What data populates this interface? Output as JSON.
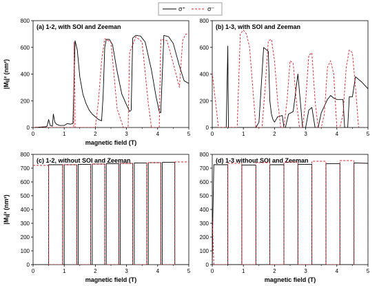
{
  "legend": {
    "entries": [
      {
        "label": "σ⁺",
        "color": "#000000",
        "dash": "solid"
      },
      {
        "label": "σ⁻",
        "color": "#d0202a",
        "dash": "dashed"
      }
    ],
    "placement": "top-center"
  },
  "chart_data": [
    {
      "type": "line",
      "title": "(a) 1-2, with SOI and Zeeman",
      "xlabel": "magnetic field (T)",
      "ylabel": "|Mᵢⱼ|² (nm²)",
      "xlim": [
        0,
        5
      ],
      "ylim": [
        0,
        800
      ],
      "xticks": [
        "0",
        "1",
        "2",
        "3",
        "4",
        "5"
      ],
      "yticks": [
        "0",
        "200",
        "400",
        "600",
        "800"
      ],
      "series": [
        {
          "name": "σ⁺",
          "x": [
            0,
            0.4,
            0.45,
            0.5,
            0.55,
            0.62,
            0.65,
            0.7,
            0.75,
            0.85,
            1.0,
            1.1,
            1.2,
            1.28,
            1.3,
            1.35,
            1.42,
            1.5,
            1.6,
            1.7,
            1.8,
            1.9,
            2.0,
            2.1,
            2.2,
            2.25,
            2.3,
            2.35,
            2.45,
            2.55,
            2.7,
            2.85,
            3.0,
            3.1,
            3.15,
            3.2,
            3.3,
            3.45,
            3.6,
            3.8,
            3.95,
            4.05,
            4.1,
            4.2,
            4.35,
            4.5,
            4.7,
            4.85,
            5.0
          ],
          "y": [
            0,
            5,
            10,
            60,
            15,
            10,
            100,
            40,
            25,
            15,
            15,
            30,
            25,
            30,
            220,
            650,
            580,
            380,
            250,
            180,
            130,
            100,
            80,
            60,
            50,
            240,
            600,
            660,
            660,
            620,
            420,
            250,
            170,
            120,
            130,
            670,
            690,
            685,
            640,
            430,
            230,
            120,
            110,
            690,
            680,
            630,
            460,
            350,
            330
          ]
        },
        {
          "name": "σ⁻",
          "x": [
            0,
            1.3,
            1.32,
            1.35,
            1.8,
            2.0,
            2.1,
            2.2,
            2.3,
            2.5,
            2.7,
            2.9,
            3.0,
            3.05,
            3.1,
            3.3,
            3.5,
            3.7,
            3.8,
            3.9,
            4.0,
            4.05,
            4.1,
            4.3,
            4.5,
            4.7,
            4.8,
            4.9,
            5.0
          ],
          "y": [
            0,
            0,
            640,
            0,
            0,
            0,
            200,
            500,
            665,
            640,
            140,
            0,
            0,
            0,
            560,
            680,
            640,
            180,
            0,
            0,
            0,
            0,
            660,
            650,
            480,
            300,
            650,
            700,
            700
          ]
        }
      ]
    },
    {
      "type": "line",
      "title": "(b) 1-3, with SOI and Zeeman",
      "xlabel": "",
      "ylabel": "",
      "xlim": [
        0,
        5
      ],
      "ylim": [
        0,
        800
      ],
      "xticks": [
        "0",
        "1",
        "2",
        "3",
        "4",
        "5"
      ],
      "yticks": [
        "0",
        "200",
        "400",
        "600",
        "800"
      ],
      "series": [
        {
          "name": "σ⁺",
          "x": [
            0,
            0.35,
            0.45,
            0.5,
            0.52,
            0.6,
            1.4,
            1.5,
            1.65,
            1.8,
            1.85,
            1.9,
            1.95,
            2.0,
            2.1,
            2.25,
            2.3,
            2.35,
            2.45,
            2.6,
            2.75,
            2.85,
            2.9,
            3.0,
            3.1,
            3.2,
            3.3,
            3.4,
            3.5,
            3.7,
            3.8,
            3.9,
            4.0,
            4.2,
            4.25,
            4.3,
            4.35,
            4.4,
            4.5,
            4.6,
            4.8,
            5.0
          ],
          "y": [
            0,
            0,
            0,
            610,
            0,
            0,
            0,
            40,
            600,
            570,
            200,
            100,
            60,
            40,
            80,
            90,
            0,
            0,
            100,
            120,
            400,
            140,
            0,
            0,
            130,
            150,
            0,
            0,
            110,
            210,
            240,
            220,
            210,
            210,
            0,
            0,
            0,
            230,
            230,
            380,
            340,
            290
          ]
        },
        {
          "name": "σ⁻",
          "x": [
            0,
            0.2,
            0.3,
            0.5,
            0.7,
            0.8,
            0.9,
            1.0,
            1.1,
            1.2,
            1.3,
            1.4,
            1.5,
            1.6,
            1.7,
            1.8,
            1.9,
            2.0,
            2.1,
            2.2,
            2.3,
            2.4,
            2.5,
            2.6,
            2.7,
            2.8,
            2.9,
            3.0,
            3.1,
            3.2,
            3.3,
            3.4,
            3.5,
            3.6,
            3.7,
            3.8,
            3.9,
            4.0,
            4.1,
            4.2,
            4.3,
            4.4,
            4.5,
            4.6,
            4.7
          ],
          "y": [
            410,
            0,
            0,
            0,
            0,
            0,
            700,
            730,
            700,
            600,
            300,
            0,
            0,
            0,
            300,
            650,
            660,
            500,
            200,
            0,
            0,
            200,
            500,
            480,
            200,
            0,
            0,
            200,
            540,
            560,
            200,
            0,
            0,
            100,
            450,
            500,
            400,
            0,
            0,
            100,
            450,
            580,
            560,
            300,
            0
          ]
        }
      ]
    },
    {
      "type": "line",
      "title": "(c) 1-2, without SOI and Zeeman",
      "xlabel": "magnetic field (T)",
      "ylabel": "|Mᵢⱼ|² (nm²)",
      "xlim": [
        0,
        5
      ],
      "ylim": [
        0,
        800
      ],
      "xticks": [
        "0",
        "1",
        "2",
        "3",
        "4",
        "5"
      ],
      "yticks": [
        "0",
        "100",
        "200",
        "300",
        "400",
        "500",
        "600",
        "700",
        "800"
      ],
      "series": [
        {
          "name": "σ⁺",
          "x": [
            0,
            0.48,
            0.5,
            0.5,
            0.95,
            0.95,
            1.0,
            1.0,
            1.4,
            1.4,
            1.45,
            1.45,
            1.85,
            1.85,
            1.9,
            1.9,
            2.3,
            2.3,
            2.35,
            2.35,
            2.75,
            2.75,
            2.8,
            2.8,
            3.2,
            3.2,
            3.25,
            3.25,
            3.65,
            3.65,
            3.7,
            3.7,
            4.1,
            4.1,
            4.15,
            4.15,
            4.55,
            4.55,
            4.6,
            4.6,
            5.0
          ],
          "y": [
            0,
            0,
            0,
            725,
            725,
            0,
            0,
            725,
            725,
            0,
            0,
            728,
            728,
            0,
            0,
            730,
            730,
            0,
            0,
            733,
            733,
            0,
            0,
            735,
            735,
            0,
            0,
            738,
            738,
            0,
            0,
            740,
            740,
            0,
            0,
            742,
            742,
            0,
            0,
            0,
            0
          ]
        },
        {
          "name": "σ⁻",
          "x": [
            0,
            0.5,
            0.5,
            0.95,
            0.95,
            1.4,
            1.4,
            1.85,
            1.85,
            2.3,
            2.3,
            2.75,
            2.75,
            3.2,
            3.2,
            3.65,
            3.65,
            4.1,
            4.1,
            4.55,
            4.55,
            5.0
          ],
          "y": [
            720,
            720,
            0,
            0,
            725,
            725,
            0,
            0,
            730,
            730,
            0,
            0,
            735,
            735,
            0,
            0,
            740,
            740,
            0,
            0,
            745,
            745
          ]
        }
      ]
    },
    {
      "type": "line",
      "title": "(d) 1-3 without SOI and Zeeman",
      "xlabel": "magnetic field (T)",
      "ylabel": "",
      "xlim": [
        0,
        5
      ],
      "ylim": [
        0,
        800
      ],
      "xticks": [
        "0",
        "1",
        "2",
        "3",
        "4",
        "5"
      ],
      "yticks": [
        "0",
        "100",
        "200",
        "300",
        "400",
        "500",
        "600",
        "700",
        "800"
      ],
      "series": [
        {
          "name": "σ⁺",
          "x": [
            0,
            0.02,
            0.05,
            0.1,
            0.5,
            0.5,
            0.95,
            0.95,
            1.4,
            1.4,
            1.85,
            1.85,
            2.3,
            2.3,
            2.75,
            2.75,
            3.2,
            3.2,
            3.65,
            3.65,
            4.1,
            4.1,
            4.55,
            4.55,
            5.0
          ],
          "y": [
            0,
            360,
            725,
            725,
            725,
            0,
            0,
            722,
            722,
            0,
            0,
            725,
            725,
            0,
            0,
            728,
            728,
            0,
            0,
            733,
            733,
            0,
            0,
            738,
            735
          ]
        },
        {
          "name": "σ⁻",
          "x": [
            0,
            0.05,
            0.1,
            0.5,
            0.5,
            0.95,
            0.95,
            1.4,
            1.4,
            1.85,
            1.85,
            2.3,
            2.3,
            2.75,
            2.75,
            3.2,
            3.2,
            3.65,
            3.65,
            4.1,
            4.1,
            4.55,
            4.55
          ],
          "y": [
            340,
            0,
            0,
            0,
            735,
            735,
            0,
            0,
            740,
            740,
            0,
            0,
            745,
            745,
            0,
            0,
            750,
            750,
            0,
            0,
            755,
            755,
            0
          ]
        }
      ]
    }
  ]
}
